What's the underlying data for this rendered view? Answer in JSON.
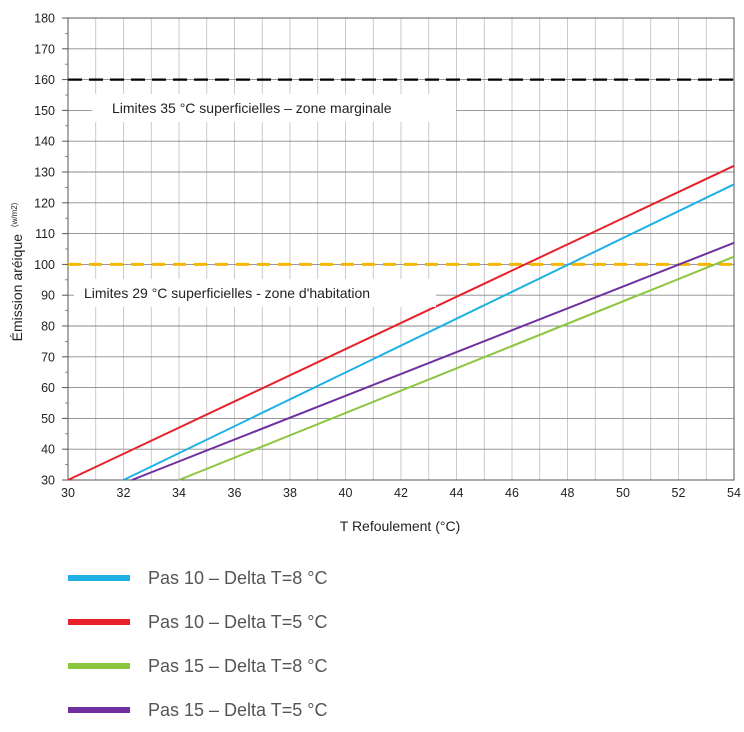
{
  "chart_data": {
    "type": "line",
    "xlabel": "T Refoulement (°C)",
    "ylabel": "Émission aréique",
    "ylabel_unit": "(w/m2)",
    "xlim": [
      30,
      54
    ],
    "ylim": [
      30,
      180
    ],
    "x_ticks": [
      30,
      32,
      34,
      36,
      38,
      40,
      42,
      44,
      46,
      48,
      50,
      52,
      54
    ],
    "y_ticks": [
      30,
      40,
      50,
      60,
      70,
      80,
      90,
      100,
      110,
      120,
      130,
      140,
      150,
      160,
      170,
      180
    ],
    "grid": true,
    "series": [
      {
        "name": "Pas 10 – Delta T=8 °C",
        "color": "#1fb1e6",
        "x": [
          32,
          54
        ],
        "y": [
          30,
          126
        ]
      },
      {
        "name": "Pas 10 – Delta T=5 °C",
        "color": "#e8202a",
        "x": [
          30,
          54
        ],
        "y": [
          30,
          132
        ]
      },
      {
        "name": "Pas 15 – Delta T=8 °C",
        "color": "#8cc63f",
        "x": [
          34,
          54
        ],
        "y": [
          30,
          102.5
        ]
      },
      {
        "name": "Pas 15 – Delta T=5 °C",
        "color": "#7030a0",
        "x": [
          32.3,
          54
        ],
        "y": [
          30,
          107
        ]
      }
    ],
    "reference_lines": [
      {
        "y": 160,
        "color": "#000000",
        "label": "Limites 35 °C superficielles – zone marginale"
      },
      {
        "y": 100,
        "color": "#f5b800",
        "label": "Limites 29 °C superficielles - zone d'habitation"
      }
    ],
    "legend": {
      "placement": "bottom",
      "items": [
        "Pas 10 – Delta T=8 °C",
        "Pas 10 – Delta T=5 °C",
        "Pas 15 – Delta T=8 °C",
        "Pas 15 – Delta T=5 °C"
      ]
    }
  }
}
